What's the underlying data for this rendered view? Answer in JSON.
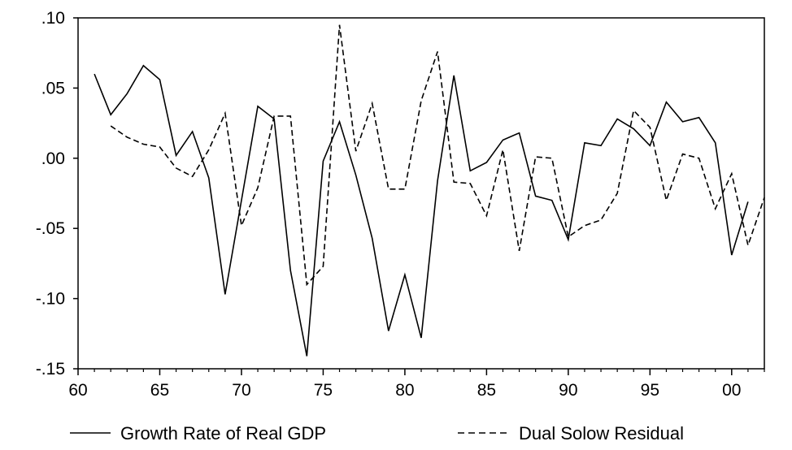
{
  "chart_data": {
    "type": "line",
    "title": "",
    "xlabel": "",
    "ylabel": "",
    "x_tick_labels": [
      "60",
      "65",
      "70",
      "75",
      "80",
      "85",
      "90",
      "95",
      "00"
    ],
    "y_tick_labels": [
      ".10",
      ".05",
      ".00",
      "-.05",
      "-.10",
      "-.15"
    ],
    "xlim": [
      1960,
      2002
    ],
    "ylim": [
      -0.15,
      0.1
    ],
    "grid": false,
    "legend_position": "bottom",
    "series": [
      {
        "name": "Growth Rate of Real GDP",
        "style": "solid",
        "color": "#000000",
        "x": [
          1961,
          1962,
          1963,
          1964,
          1965,
          1966,
          1967,
          1968,
          1969,
          1970,
          1971,
          1972,
          1973,
          1974,
          1975,
          1976,
          1977,
          1978,
          1979,
          1980,
          1981,
          1982,
          1983,
          1984,
          1985,
          1986,
          1987,
          1988,
          1989,
          1990,
          1991,
          1992,
          1993,
          1994,
          1995,
          1996,
          1997,
          1998,
          1999,
          2000,
          2001
        ],
        "values": [
          0.06,
          0.031,
          0.046,
          0.066,
          0.056,
          0.002,
          0.019,
          -0.014,
          -0.097,
          -0.03,
          0.037,
          0.028,
          -0.08,
          -0.141,
          -0.002,
          0.026,
          -0.012,
          -0.057,
          -0.123,
          -0.083,
          -0.128,
          -0.016,
          0.059,
          -0.009,
          -0.003,
          0.013,
          0.018,
          -0.027,
          -0.03,
          -0.058,
          0.011,
          0.009,
          0.028,
          0.021,
          0.009,
          0.04,
          0.026,
          0.029,
          0.011,
          -0.069,
          -0.031
        ]
      },
      {
        "name": "Dual Solow Residual",
        "style": "dashed",
        "color": "#000000",
        "x": [
          1962,
          1963,
          1964,
          1965,
          1966,
          1967,
          1968,
          1969,
          1970,
          1971,
          1972,
          1973,
          1974,
          1975,
          1976,
          1977,
          1978,
          1979,
          1980,
          1981,
          1982,
          1983,
          1984,
          1985,
          1986,
          1987,
          1988,
          1989,
          1990,
          1991,
          1992,
          1993,
          1994,
          1995,
          1996,
          1997,
          1998,
          1999,
          2000,
          2001,
          2002
        ],
        "values": [
          0.023,
          0.015,
          0.01,
          0.008,
          -0.007,
          -0.013,
          0.006,
          0.032,
          -0.048,
          -0.021,
          0.03,
          0.03,
          -0.09,
          -0.077,
          0.095,
          0.005,
          0.039,
          -0.022,
          -0.022,
          0.041,
          0.076,
          -0.017,
          -0.018,
          -0.041,
          0.006,
          -0.066,
          0.001,
          0.0,
          -0.056,
          -0.048,
          -0.044,
          -0.025,
          0.034,
          0.022,
          -0.03,
          0.003,
          0.0,
          -0.036,
          -0.011,
          -0.062,
          -0.028
        ]
      }
    ]
  }
}
